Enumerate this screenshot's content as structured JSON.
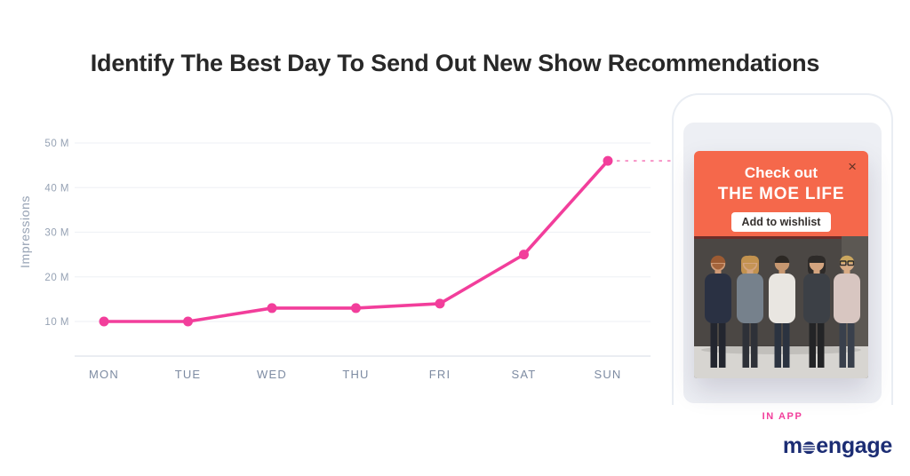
{
  "title": "Identify The Best Day To Send Out New Show Recommendations",
  "chart_data": {
    "type": "line",
    "title": "",
    "categories": [
      "MON",
      "TUE",
      "WED",
      "THU",
      "FRI",
      "SAT",
      "SUN"
    ],
    "series": [
      {
        "name": "Impressions",
        "values": [
          10,
          10,
          13,
          13,
          14,
          25,
          46
        ]
      }
    ],
    "unit": "M",
    "xlabel": "",
    "ylabel": "Impressions",
    "yticks": [
      10,
      20,
      30,
      40,
      50
    ],
    "ytick_labels": [
      "10 M",
      "20 M",
      "30 M",
      "40 M",
      "50 M"
    ],
    "ylim": [
      0,
      55
    ],
    "grid": "horizontal",
    "legend": "none",
    "line_color": "#F23E9B",
    "marker": "circle",
    "annotation": {
      "type": "dashed-connector",
      "from": "SUN data point",
      "to": "in-app notification card"
    }
  },
  "phone": {
    "notification": {
      "headline_line1": "Check out",
      "headline_line2": "THE MOE LIFE",
      "button_label": "Add to wishlist",
      "close_glyph": "×",
      "header_color": "#F5684B",
      "image_label": "band-photo"
    }
  },
  "labels": {
    "channel": "IN APP"
  },
  "brand": {
    "logo": "moengage",
    "color": "#1C2D74"
  },
  "colors": {
    "accent_pink": "#F23E9B",
    "card_orange": "#F5684B",
    "brand_navy": "#1C2D74"
  }
}
